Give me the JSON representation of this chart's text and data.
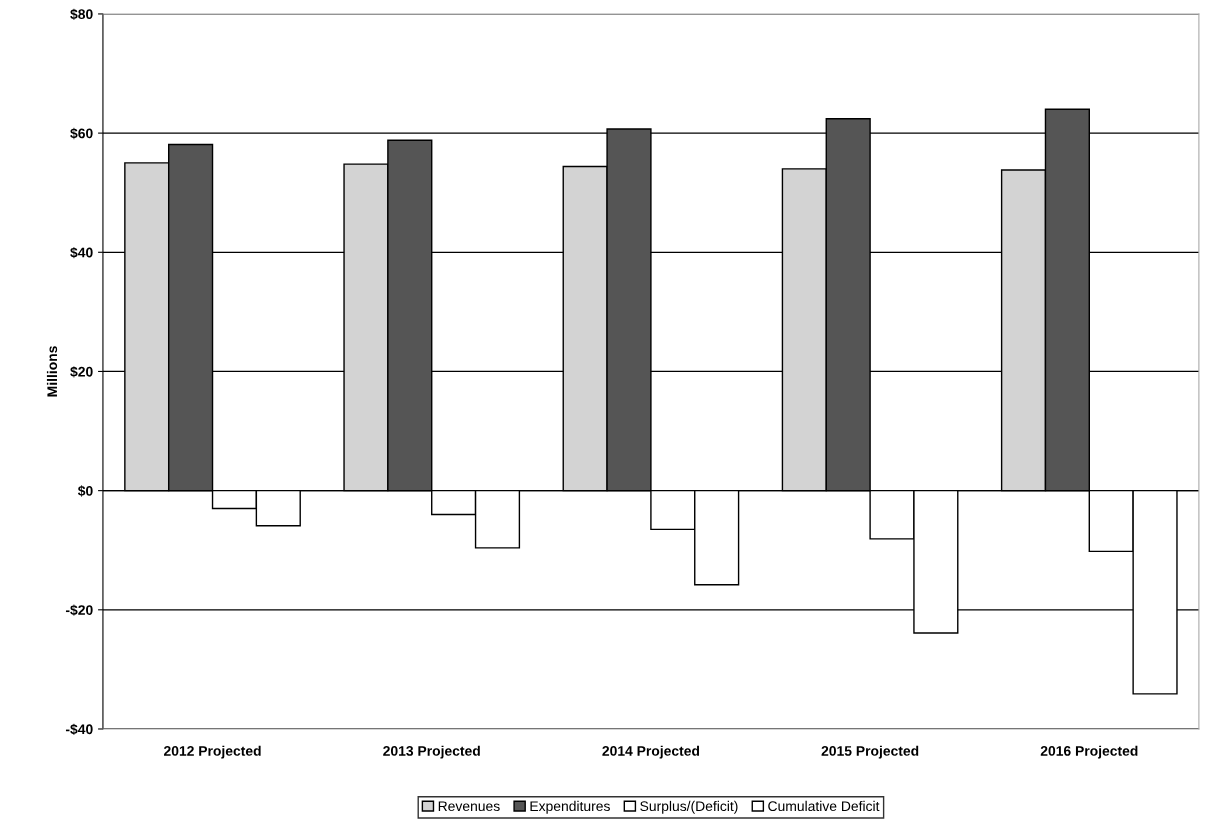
{
  "chart_data": {
    "type": "bar",
    "ylabel": "Millions",
    "categories": [
      "2012 Projected",
      "2013 Projected",
      "2014 Projected",
      "2015 Projected",
      "2016 Projected"
    ],
    "series": [
      {
        "name": "Revenues",
        "color": "#d3d3d3",
        "values": [
          55.0,
          54.8,
          54.4,
          54.0,
          53.8
        ]
      },
      {
        "name": "Expenditures",
        "color": "#555555",
        "values": [
          58.1,
          58.8,
          60.7,
          62.4,
          64.0
        ]
      },
      {
        "name": "Surplus/(Deficit)",
        "color": "#ffffff",
        "values": [
          -3.0,
          -4.0,
          -6.5,
          -8.1,
          -10.2
        ]
      },
      {
        "name": "Cumulative Deficit",
        "color": "#ffffff",
        "values": [
          -5.9,
          -9.6,
          -15.8,
          -23.9,
          -34.1
        ]
      }
    ],
    "ylim": [
      -40,
      80
    ],
    "yticks": [
      {
        "value": -40,
        "label": "-$40"
      },
      {
        "value": -20,
        "label": "-$20"
      },
      {
        "value": 0,
        "label": "$0"
      },
      {
        "value": 20,
        "label": "$20"
      },
      {
        "value": 40,
        "label": "$40"
      },
      {
        "value": 60,
        "label": "$60"
      },
      {
        "value": 80,
        "label": "$80"
      }
    ],
    "grid": "y",
    "legend": "bottom"
  }
}
